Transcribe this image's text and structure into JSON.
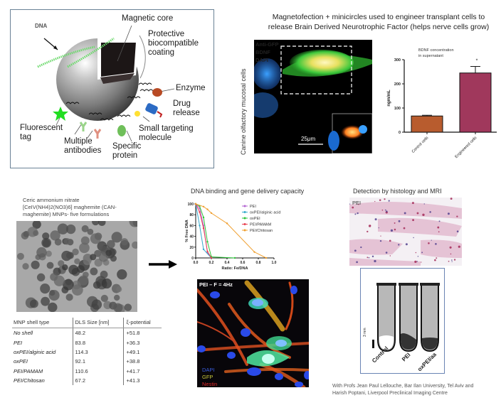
{
  "nanoparticle_diagram": {
    "labels": {
      "dna": "DNA",
      "magnetic_core": "Magnetic core",
      "protective_coating": [
        "Protective",
        "biocompatible",
        "coating"
      ],
      "enzyme": "Enzyme",
      "drug_release": [
        "Drug",
        "release"
      ],
      "small_targeting": [
        "Small targeting",
        "molecule"
      ],
      "specific_protein": [
        "Specific",
        "protein"
      ],
      "multiple_antibodies": [
        "Multiple",
        "antibodies"
      ],
      "fluorescent_tag": [
        "Fluorescent",
        "tag"
      ]
    }
  },
  "bdnf_section": {
    "title_line1": "Magnetofection + minicircles used to engineer transplant cells to",
    "title_line2": "release Brain Derived Neurotrophic Factor (helps nerve cells grow)",
    "micrograph": {
      "y_label": "Canine olfactory mucosal cells",
      "legend": [
        {
          "text": "Anti-GFP",
          "color": "#2ecc2e"
        },
        {
          "text": "BDNF",
          "color": "#e8641e"
        },
        {
          "text": "DAPI",
          "color": "#3a6ee8"
        }
      ],
      "scale_bar": "25μm"
    }
  },
  "chart_data": [
    {
      "type": "bar",
      "title": "BDNF concentration in supernatant",
      "categories": [
        "Control cells",
        "Engineered cells"
      ],
      "values": [
        67,
        245
      ],
      "errors": [
        3,
        27
      ],
      "colors": [
        "#b85c2e",
        "#a0385c"
      ],
      "annotations": [
        {
          "category": "Engineered cells",
          "text": "*"
        }
      ],
      "xlabel": "",
      "ylabel": "ngm/mL",
      "ylim": [
        0,
        300
      ],
      "yticks": [
        0,
        100,
        200,
        300
      ],
      "grid": false
    },
    {
      "type": "line",
      "title": "DNA binding and gene delivery capacity",
      "xlabel": "Ratio: Fe/DNA",
      "ylabel": "% Free DNA",
      "xlim": [
        0.0,
        1.0
      ],
      "ylim": [
        0,
        100
      ],
      "xticks": [
        "0.0",
        "0.2",
        "0.4",
        "0.6",
        "0.8",
        "1.0"
      ],
      "yticks": [
        0,
        20,
        40,
        60,
        80,
        100
      ],
      "legend_position": "right",
      "grid": false,
      "series": [
        {
          "name": "PEI",
          "color": "#b466d2",
          "x": [
            0.0,
            0.05,
            0.1,
            0.15,
            0.2
          ],
          "y": [
            100,
            92,
            60,
            10,
            0
          ]
        },
        {
          "name": "oxPEI/alginic acid",
          "color": "#38aacc",
          "x": [
            0.0,
            0.05,
            0.1,
            0.2
          ],
          "y": [
            100,
            60,
            16,
            0
          ]
        },
        {
          "name": "oxPEI",
          "color": "#2ec43a",
          "x": [
            0.0,
            0.05,
            0.1,
            0.15,
            0.2,
            0.5
          ],
          "y": [
            100,
            96,
            75,
            30,
            2,
            0
          ]
        },
        {
          "name": "PEI/PAMAM",
          "color": "#e84050",
          "x": [
            0.0,
            0.05,
            0.1,
            0.15,
            0.2
          ],
          "y": [
            100,
            85,
            55,
            12,
            0
          ]
        },
        {
          "name": "PEI/Chitosan",
          "color": "#f0a030",
          "x": [
            0.0,
            0.1,
            0.15,
            0.2,
            0.4,
            0.75,
            0.9
          ],
          "y": [
            100,
            95,
            90,
            83,
            64,
            11,
            0
          ]
        }
      ]
    }
  ],
  "can_maghemite": {
    "line1": "Ceric ammonium nitrate",
    "line2": "[CeIV(NH4)2(NO3)6]  maghemite (CAN-",
    "line3": "maghemite) MNPs- five formulations"
  },
  "mnp_table": {
    "headers": [
      "MNP shell type",
      "DLS Size [nm]",
      "ξ-potential"
    ],
    "rows": [
      [
        "No shell",
        "48.2",
        "+51.8"
      ],
      [
        "PEI",
        "83.8",
        "+36.3"
      ],
      [
        "oxPEI/alginic acid",
        "114.3",
        "+49.1"
      ],
      [
        "oxPEI",
        "92.1",
        "+38.8"
      ],
      [
        "PEI/PAMAM",
        "110.6",
        "+41.7"
      ],
      [
        "PEI/Chitosan",
        "67.2",
        "+41.3"
      ]
    ]
  },
  "neuron_micrograph": {
    "label": "PEI – F = 4Hz",
    "legend": [
      {
        "text": "DAPI",
        "color": "#3a5ee0"
      },
      {
        "text": "GFP",
        "color": "#c8c83a"
      },
      {
        "text": "Nestin",
        "color": "#e02828"
      }
    ]
  },
  "detection": {
    "title": "Detection by histology and MRI",
    "histology_label": "PEI",
    "mri": {
      "scale": "3 mm",
      "tubes": [
        "Control",
        "PEI",
        "oxPEI/aa"
      ]
    }
  },
  "credit": {
    "line1": "With Profs Jean Paul Lellouche, Bar Ilan University, Tel Aviv and",
    "line2": "Harish Poptani, Liverpool Preclinical Imaging Centre"
  }
}
